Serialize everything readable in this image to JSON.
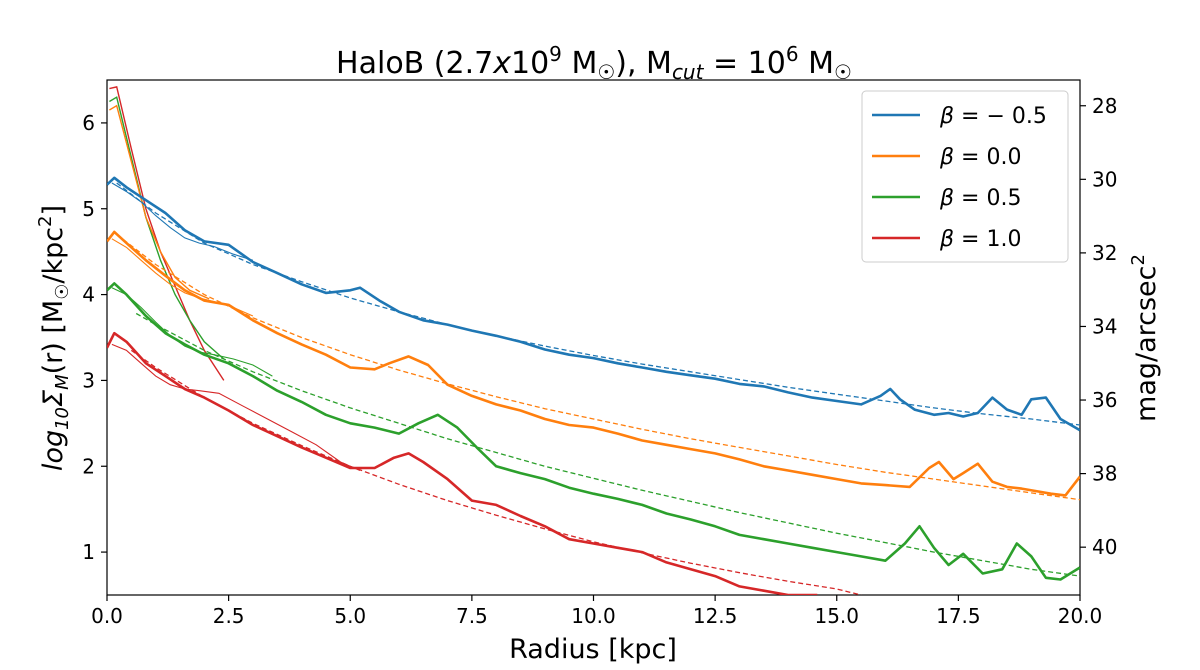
{
  "chart_data": {
    "type": "line",
    "title": "HaloB (2.7x10^9 M☉), M_cut = 10^6 M☉",
    "title_parts": {
      "prefix": "HaloB (2.7",
      "x": "x",
      "ten": "10",
      "exp1": "9",
      "msun1": " M",
      "sun1": "☉",
      "close": "), M",
      "cut": "cut",
      "eq": " = 10",
      "exp2": "6",
      "msun2": " M",
      "sun2": "☉"
    },
    "xlabel": "Radius [kpc]",
    "ylabel": "log10ΣM(r) [M☉/kpc2]",
    "ylabel_parts": {
      "log": "log",
      "sub10": "10",
      "sigma": "Σ",
      "subM": "M",
      "r": "(r) [M",
      "sun": "☉",
      "unit": "/kpc",
      "exp": "2",
      "close": "]"
    },
    "y2label": "mag/arcsec2",
    "y2label_parts": {
      "base": "mag/arcsec",
      "exp": "2"
    },
    "xlim": [
      0,
      20
    ],
    "ylim": [
      0.5,
      6.5
    ],
    "y2lim": [
      27.3,
      41.3
    ],
    "y2_ticks": [
      "28",
      "30",
      "32",
      "34",
      "36",
      "38",
      "40"
    ],
    "x_ticks": [
      "0.0",
      "2.5",
      "5.0",
      "7.5",
      "10.0",
      "12.5",
      "15.0",
      "17.5",
      "20.0"
    ],
    "y_ticks": [
      "1",
      "2",
      "3",
      "4",
      "5",
      "6"
    ],
    "grid": false,
    "legend_position": "top-right",
    "series": [
      {
        "name": "β = −0.5",
        "legend_prefix": "β",
        "legend_value": " = − 0.5",
        "color": "#1f77b4",
        "x": [
          0.0,
          0.15,
          0.4,
          0.8,
          1.2,
          1.6,
          2.0,
          2.5,
          3.0,
          3.5,
          4.0,
          4.5,
          5.0,
          5.2,
          5.6,
          6.0,
          6.5,
          7.0,
          7.5,
          8.0,
          8.5,
          9.0,
          9.5,
          10.0,
          10.5,
          11.0,
          11.5,
          12.0,
          12.5,
          13.0,
          13.5,
          14.0,
          14.5,
          15.0,
          15.5,
          15.9,
          16.1,
          16.3,
          16.6,
          17.0,
          17.3,
          17.6,
          17.9,
          18.2,
          18.5,
          18.8,
          19.0,
          19.3,
          19.6,
          20.0
        ],
        "y": [
          5.28,
          5.36,
          5.25,
          5.1,
          4.95,
          4.75,
          4.62,
          4.58,
          4.38,
          4.25,
          4.12,
          4.02,
          4.05,
          4.08,
          3.93,
          3.8,
          3.7,
          3.65,
          3.58,
          3.52,
          3.45,
          3.36,
          3.3,
          3.26,
          3.2,
          3.15,
          3.1,
          3.06,
          3.02,
          2.96,
          2.93,
          2.86,
          2.8,
          2.76,
          2.72,
          2.82,
          2.9,
          2.78,
          2.66,
          2.6,
          2.62,
          2.58,
          2.62,
          2.8,
          2.66,
          2.6,
          2.78,
          2.8,
          2.55,
          2.42
        ],
        "fit_x": [
          0.2,
          1,
          2,
          3,
          4,
          5,
          6,
          7,
          8,
          9,
          10,
          11,
          12,
          13,
          14,
          15,
          16,
          17,
          18,
          19,
          20
        ],
        "fit_y": [
          5.3,
          4.95,
          4.6,
          4.35,
          4.15,
          3.96,
          3.8,
          3.65,
          3.52,
          3.4,
          3.29,
          3.19,
          3.1,
          3.01,
          2.92,
          2.84,
          2.76,
          2.68,
          2.61,
          2.55,
          2.48
        ],
        "inner_x": [
          0.1,
          0.4,
          0.7,
          1.0,
          1.3,
          1.6,
          1.9,
          2.2,
          2.6,
          3.0
        ],
        "inner_y": [
          5.3,
          5.2,
          5.08,
          4.92,
          4.78,
          4.66,
          4.6,
          4.56,
          4.47,
          4.4
        ]
      },
      {
        "name": "β = 0.0",
        "legend_prefix": "β",
        "legend_value": " = 0.0",
        "color": "#ff7f0e",
        "x": [
          0.0,
          0.15,
          0.4,
          0.8,
          1.2,
          1.6,
          2.0,
          2.5,
          3.0,
          3.5,
          4.0,
          4.5,
          5.0,
          5.5,
          5.8,
          6.2,
          6.6,
          7.0,
          7.5,
          8.0,
          8.5,
          9.0,
          9.5,
          10.0,
          10.5,
          11.0,
          11.5,
          12.0,
          12.5,
          13.0,
          13.5,
          14.0,
          14.5,
          15.0,
          15.5,
          16.0,
          16.5,
          16.9,
          17.1,
          17.4,
          17.6,
          17.9,
          18.2,
          18.5,
          18.8,
          19.1,
          19.4,
          19.7,
          20.0
        ],
        "y": [
          4.62,
          4.73,
          4.6,
          4.4,
          4.22,
          4.05,
          3.93,
          3.88,
          3.7,
          3.55,
          3.42,
          3.3,
          3.15,
          3.13,
          3.2,
          3.28,
          3.18,
          2.95,
          2.82,
          2.72,
          2.65,
          2.55,
          2.48,
          2.45,
          2.38,
          2.3,
          2.25,
          2.2,
          2.15,
          2.08,
          2.0,
          1.95,
          1.9,
          1.85,
          1.8,
          1.78,
          1.76,
          1.98,
          2.05,
          1.85,
          1.92,
          2.03,
          1.82,
          1.76,
          1.74,
          1.71,
          1.68,
          1.66,
          1.88
        ],
        "fit_x": [
          0.2,
          1,
          2,
          3,
          4,
          5,
          6,
          7,
          8,
          9,
          10,
          11,
          12,
          13,
          14,
          15,
          16,
          17,
          18,
          19,
          20
        ],
        "fit_y": [
          4.7,
          4.35,
          4.0,
          3.73,
          3.5,
          3.3,
          3.12,
          2.96,
          2.81,
          2.67,
          2.55,
          2.43,
          2.32,
          2.22,
          2.12,
          2.02,
          1.93,
          1.85,
          1.77,
          1.69,
          1.61
        ],
        "inner_x": [
          0.1,
          0.4,
          0.7,
          1.0,
          1.3,
          1.6,
          1.9,
          2.2,
          2.6,
          3.0
        ],
        "inner_y": [
          4.65,
          4.55,
          4.4,
          4.25,
          4.12,
          4.02,
          3.96,
          3.92,
          3.85,
          3.75
        ]
      },
      {
        "name": "β = 0.5",
        "legend_prefix": "β",
        "legend_value": " = 0.5",
        "color": "#2ca02c",
        "x": [
          0.0,
          0.15,
          0.4,
          0.8,
          1.2,
          1.6,
          2.0,
          2.5,
          3.0,
          3.5,
          4.0,
          4.5,
          5.0,
          5.5,
          6.0,
          6.4,
          6.8,
          7.2,
          7.6,
          8.0,
          8.5,
          9.0,
          9.5,
          10.0,
          10.5,
          11.0,
          11.5,
          12.0,
          12.5,
          13.0,
          13.5,
          14.0,
          14.5,
          15.0,
          15.5,
          16.0,
          16.4,
          16.7,
          17.0,
          17.3,
          17.6,
          18.0,
          18.4,
          18.7,
          19.0,
          19.3,
          19.6,
          20.0
        ],
        "y": [
          4.05,
          4.13,
          4.0,
          3.75,
          3.55,
          3.42,
          3.3,
          3.2,
          3.05,
          2.88,
          2.75,
          2.6,
          2.5,
          2.45,
          2.38,
          2.5,
          2.6,
          2.45,
          2.22,
          2.0,
          1.92,
          1.85,
          1.75,
          1.68,
          1.62,
          1.55,
          1.45,
          1.38,
          1.3,
          1.2,
          1.15,
          1.1,
          1.05,
          1.0,
          0.95,
          0.9,
          1.1,
          1.3,
          1.05,
          0.85,
          0.98,
          0.75,
          0.8,
          1.1,
          0.95,
          0.7,
          0.68,
          0.82
        ],
        "fit_x": [
          0.6,
          1,
          2,
          3,
          4,
          5,
          6,
          7,
          8,
          9,
          10,
          11,
          12,
          13,
          14,
          15,
          16,
          17,
          18,
          19,
          20
        ],
        "fit_y": [
          3.78,
          3.65,
          3.35,
          3.1,
          2.88,
          2.68,
          2.5,
          2.32,
          2.16,
          2.0,
          1.86,
          1.72,
          1.59,
          1.46,
          1.34,
          1.22,
          1.11,
          1.0,
          0.9,
          0.8,
          0.72
        ],
        "inner_x": [
          0.1,
          0.4,
          0.7,
          1.0,
          1.3,
          1.6,
          1.9,
          2.2,
          2.6,
          3.0,
          3.4
        ],
        "inner_y": [
          4.08,
          4.0,
          3.85,
          3.68,
          3.52,
          3.4,
          3.33,
          3.3,
          3.25,
          3.18,
          3.05
        ]
      },
      {
        "name": "β = 1.0",
        "legend_prefix": "β",
        "legend_value": " = 1.0",
        "color": "#d62728",
        "x": [
          0.0,
          0.15,
          0.4,
          0.8,
          1.2,
          1.6,
          2.0,
          2.5,
          3.0,
          3.5,
          4.0,
          4.5,
          5.0,
          5.5,
          5.9,
          6.2,
          6.5,
          7.0,
          7.5,
          8.0,
          8.5,
          9.0,
          9.5,
          10.0,
          10.5,
          11.0,
          11.5,
          12.0,
          12.5,
          13.0,
          13.5,
          14.0,
          14.3,
          14.6
        ],
        "y": [
          3.38,
          3.55,
          3.45,
          3.2,
          3.05,
          2.9,
          2.8,
          2.65,
          2.48,
          2.35,
          2.22,
          2.1,
          1.98,
          1.98,
          2.1,
          2.15,
          2.05,
          1.85,
          1.6,
          1.55,
          1.42,
          1.3,
          1.15,
          1.1,
          1.05,
          1.0,
          0.88,
          0.8,
          0.72,
          0.6,
          0.55,
          0.5,
          0.45,
          0.4
        ],
        "fit_x": [
          0.5,
          1,
          2,
          3,
          4,
          5,
          6,
          7,
          8,
          9,
          10,
          11,
          12,
          13,
          14,
          15,
          15.5
        ],
        "fit_y": [
          3.35,
          3.15,
          2.8,
          2.5,
          2.24,
          2.0,
          1.79,
          1.6,
          1.43,
          1.27,
          1.12,
          0.99,
          0.87,
          0.76,
          0.66,
          0.57,
          0.5
        ],
        "inner_x": [
          0.1,
          0.4,
          0.7,
          1.0,
          1.3,
          1.6,
          1.9,
          2.3,
          2.8,
          3.3,
          3.8,
          4.3,
          4.8,
          5.2
        ],
        "inner_y": [
          3.42,
          3.35,
          3.2,
          3.05,
          2.95,
          2.9,
          2.88,
          2.85,
          2.7,
          2.55,
          2.4,
          2.25,
          2.05,
          1.95
        ]
      }
    ],
    "central_spikes": [
      {
        "color": "#d62728",
        "x": [
          0.05,
          0.2,
          0.5,
          0.8,
          1.1,
          1.4,
          1.7,
          2.0,
          2.4
        ],
        "y": [
          6.4,
          6.42,
          5.7,
          5.0,
          4.5,
          4.1,
          3.7,
          3.35,
          3.0
        ]
      },
      {
        "color": "#2ca02c",
        "x": [
          0.05,
          0.2,
          0.5,
          0.8,
          1.1,
          1.4,
          1.7,
          2.0,
          2.4
        ],
        "y": [
          6.25,
          6.3,
          5.6,
          4.9,
          4.4,
          4.0,
          3.7,
          3.45,
          3.25
        ]
      },
      {
        "color": "#ff7f0e",
        "x": [
          0.05,
          0.2,
          0.5,
          0.8,
          1.1,
          1.4,
          1.7,
          2.1
        ],
        "y": [
          6.15,
          6.2,
          5.55,
          4.9,
          4.5,
          4.2,
          4.05,
          3.95
        ]
      }
    ]
  }
}
